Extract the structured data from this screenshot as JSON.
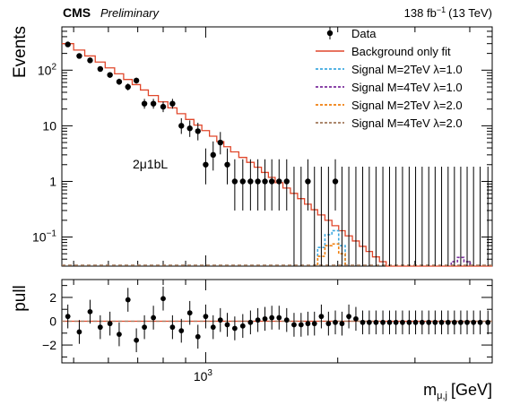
{
  "header": {
    "experiment": "CMS",
    "status": "Preliminary",
    "lumi": "138 fb",
    "lumi_exp": "−1",
    "energy": "(13 TeV)"
  },
  "category_label": "2μ1bL",
  "xlabel_main": "m",
  "xlabel_sub": "μ,j",
  "xlabel_unit": "[GeV]",
  "ylabel_top": "Events",
  "ylabel_bottom": "pull",
  "chart_data": [
    {
      "type": "line",
      "panel": "main",
      "xscale": "log",
      "yscale": "log",
      "xlim": [
        470,
        4500
      ],
      "ylim": [
        0.03,
        600
      ],
      "grid": false,
      "legend_position": "top-right",
      "xticks": [
        {
          "v": 1000,
          "label": "10",
          "exp": "3"
        }
      ],
      "yticks": [
        {
          "v": 0.1,
          "label": "10",
          "exp": "−1"
        },
        {
          "v": 1,
          "label": "1",
          "exp": ""
        },
        {
          "v": 10,
          "label": "10",
          "exp": ""
        },
        {
          "v": 100,
          "label": "10",
          "exp": "2"
        }
      ],
      "bin_edges": [
        470,
        500,
        530,
        560,
        590,
        620,
        650,
        680,
        710,
        740,
        780,
        820,
        860,
        900,
        940,
        980,
        1020,
        1060,
        1100,
        1140,
        1190,
        1240,
        1290,
        1340,
        1390,
        1440,
        1500,
        1560,
        1620,
        1680,
        1740,
        1800,
        1870,
        1940,
        2010,
        2080,
        2160,
        2240,
        2320,
        2400,
        2490,
        2580,
        2670,
        2760,
        2860,
        2960,
        3060,
        3170,
        3280,
        3390,
        3510,
        3630,
        3750,
        3880,
        4010,
        4150,
        4300,
        4500
      ],
      "series": [
        {
          "name": "Data",
          "style": "points",
          "color": "#000000",
          "x": [
            485,
            515,
            545,
            575,
            605,
            635,
            665,
            695,
            725,
            760,
            800,
            840,
            880,
            920,
            960,
            1000,
            1040,
            1080,
            1120,
            1165,
            1215,
            1265,
            1315,
            1365,
            1415,
            1470,
            1530,
            1590,
            1650,
            1710,
            1770,
            1835,
            1905,
            1975,
            2045,
            2120,
            2200,
            2280,
            2360,
            2445,
            2535,
            2625,
            2715,
            2810,
            2910,
            3010,
            3115,
            3225,
            3335,
            3450,
            3570,
            3690,
            3815,
            3945,
            4080,
            4225,
            4400
          ],
          "y": [
            290,
            180,
            150,
            105,
            82,
            62,
            50,
            65,
            25,
            25,
            22,
            25,
            10,
            9,
            8,
            2,
            3,
            5,
            2,
            1,
            1,
            1,
            1,
            1,
            1,
            1,
            1,
            0,
            0,
            1,
            0,
            0,
            0,
            1,
            0,
            0,
            0,
            0,
            0,
            0,
            0,
            0,
            0,
            0,
            0,
            0,
            0,
            0,
            0,
            0,
            0,
            0,
            0,
            0,
            0,
            0,
            0
          ]
        },
        {
          "name": "Background only fit",
          "style": "step",
          "color": "#e0472b",
          "values": [
            300,
            230,
            180,
            140,
            110,
            86,
            68,
            55,
            44,
            35,
            27,
            21,
            16.5,
            13,
            10.3,
            8.2,
            6.5,
            5.2,
            4.2,
            3.4,
            2.7,
            2.2,
            1.8,
            1.45,
            1.18,
            0.95,
            0.76,
            0.61,
            0.49,
            0.39,
            0.31,
            0.25,
            0.2,
            0.16,
            0.13,
            0.105,
            0.085,
            0.068,
            0.055,
            0.044,
            0.036,
            0.03,
            0.03,
            0.03,
            0.03,
            0.03,
            0.03,
            0.03,
            0.03,
            0.03,
            0.03,
            0.03,
            0.03,
            0.03,
            0.03,
            0.03,
            0.03
          ]
        },
        {
          "name": "Signal M=2TeV λ=1.0",
          "style": "dashed-step",
          "color": "#3fa9e0",
          "bins": [
            {
              "lo": 1800,
              "hi": 1870,
              "v": 0.065
            },
            {
              "lo": 1870,
              "hi": 1940,
              "v": 0.11
            },
            {
              "lo": 1940,
              "hi": 2010,
              "v": 0.13
            },
            {
              "lo": 2010,
              "hi": 2080,
              "v": 0.07
            }
          ]
        },
        {
          "name": "Signal M=4TeV λ=1.0",
          "style": "dashed-step",
          "color": "#7b2d9c",
          "bins": [
            {
              "lo": 3630,
              "hi": 3750,
              "v": 0.036
            },
            {
              "lo": 3750,
              "hi": 3880,
              "v": 0.043
            },
            {
              "lo": 3880,
              "hi": 4010,
              "v": 0.036
            }
          ]
        },
        {
          "name": "Signal M=2TeV λ=2.0",
          "style": "dashed-step",
          "color": "#f07f0e",
          "bins": [
            {
              "lo": 1800,
              "hi": 1870,
              "v": 0.045
            },
            {
              "lo": 1870,
              "hi": 1940,
              "v": 0.07
            },
            {
              "lo": 1940,
              "hi": 2010,
              "v": 0.075
            },
            {
              "lo": 2010,
              "hi": 2080,
              "v": 0.05
            }
          ]
        },
        {
          "name": "Signal M=4TeV λ=2.0",
          "style": "dashed-step",
          "color": "#a0785a",
          "bins": []
        }
      ]
    },
    {
      "type": "scatter",
      "panel": "pull",
      "xscale": "log",
      "xlim": [
        470,
        4500
      ],
      "ylim": [
        -3.5,
        3.5
      ],
      "grid": false,
      "yticks": [
        {
          "v": -2,
          "label": "−2"
        },
        {
          "v": 0,
          "label": "0"
        },
        {
          "v": 2,
          "label": "2"
        }
      ],
      "x": [
        485,
        515,
        545,
        575,
        605,
        635,
        665,
        695,
        725,
        760,
        800,
        840,
        880,
        920,
        960,
        1000,
        1040,
        1080,
        1120,
        1165,
        1215,
        1265,
        1315,
        1365,
        1415,
        1470,
        1530,
        1590,
        1650,
        1710,
        1770,
        1835,
        1905,
        1975,
        2045,
        2120,
        2200,
        2280,
        2360,
        2445,
        2535,
        2625,
        2715,
        2810,
        2910,
        3010,
        3115,
        3225,
        3335,
        3450,
        3570,
        3690,
        3815,
        3945,
        4080,
        4225,
        4400
      ],
      "y": [
        0.4,
        -0.9,
        0.8,
        -0.5,
        -0.2,
        -1.1,
        1.8,
        -1.6,
        -0.5,
        0.3,
        1.9,
        -0.5,
        -0.8,
        0.7,
        -1.3,
        0.4,
        -0.5,
        0.1,
        -0.3,
        -0.6,
        -0.4,
        -0.1,
        0.1,
        0.2,
        0.3,
        0.3,
        0.1,
        -0.3,
        -0.3,
        -0.2,
        -0.2,
        0.4,
        -0.2,
        -0.1,
        -0.2,
        0.4,
        0.2,
        -0.1,
        -0.1,
        -0.1,
        -0.1,
        -0.1,
        -0.1,
        -0.1,
        -0.1,
        -0.1,
        -0.1,
        -0.1,
        -0.1,
        -0.1,
        -0.1,
        -0.1,
        -0.1,
        -0.1,
        -0.1,
        -0.1,
        -0.1
      ],
      "err": [
        1,
        1,
        1,
        1,
        1,
        1,
        1,
        1,
        1,
        1,
        1,
        1,
        1,
        1,
        1,
        1,
        1,
        1,
        1,
        1,
        1,
        1,
        1,
        1,
        1,
        1,
        1,
        1,
        1,
        1,
        1,
        1,
        1,
        1,
        1,
        1,
        1,
        1,
        1,
        1,
        1,
        1,
        1,
        1,
        1,
        1,
        1,
        1,
        1,
        1,
        1,
        1,
        1,
        1,
        1,
        1,
        1
      ]
    }
  ]
}
